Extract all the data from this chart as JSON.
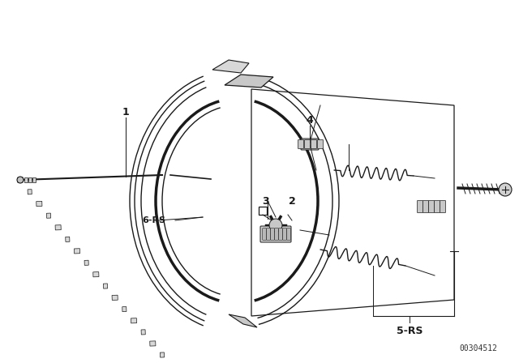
{
  "bg_color": "#ffffff",
  "line_color": "#1a1a1a",
  "code": "00304512",
  "fig_w": 6.4,
  "fig_h": 4.48,
  "dpi": 100
}
